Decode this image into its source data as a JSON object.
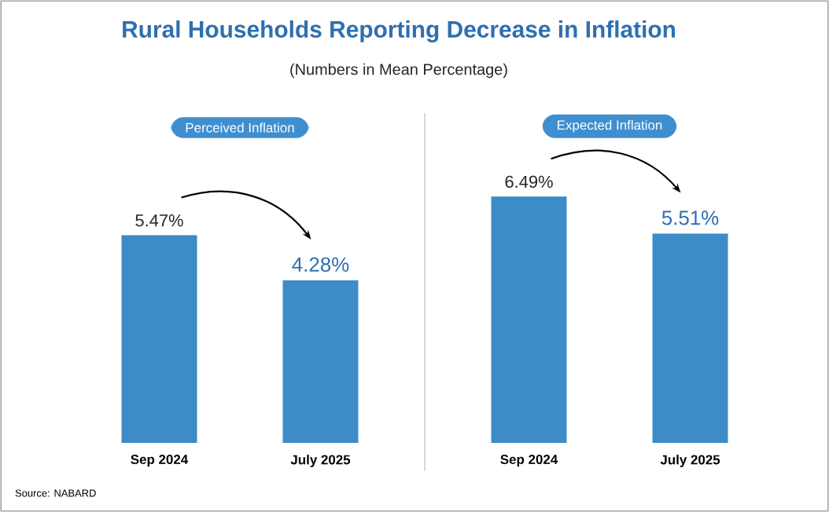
{
  "chart_data": [
    {
      "type": "other",
      "title": "Rural Households Reporting Decrease in Inflation",
      "subtitle": "(Numbers in Mean Percentage)",
      "annotations": [
        "Source: NABARD"
      ]
    },
    {
      "type": "bar",
      "title": "Perceived Inflation",
      "categories": [
        "Sep 2024",
        "July 2025"
      ],
      "values": [
        5.47,
        4.28
      ],
      "value_labels": [
        "5.47%",
        "4.28%"
      ],
      "color": "#3d8cc8",
      "tick_labels": "x"
    },
    {
      "type": "bar",
      "title": "Expected Inflation",
      "categories": [
        "Sep 2024",
        "July 2025"
      ],
      "values": [
        6.49,
        5.51
      ],
      "value_labels": [
        "6.49%",
        "5.51%"
      ],
      "color": "#3d8cc8",
      "tick_labels": "x"
    }
  ]
}
